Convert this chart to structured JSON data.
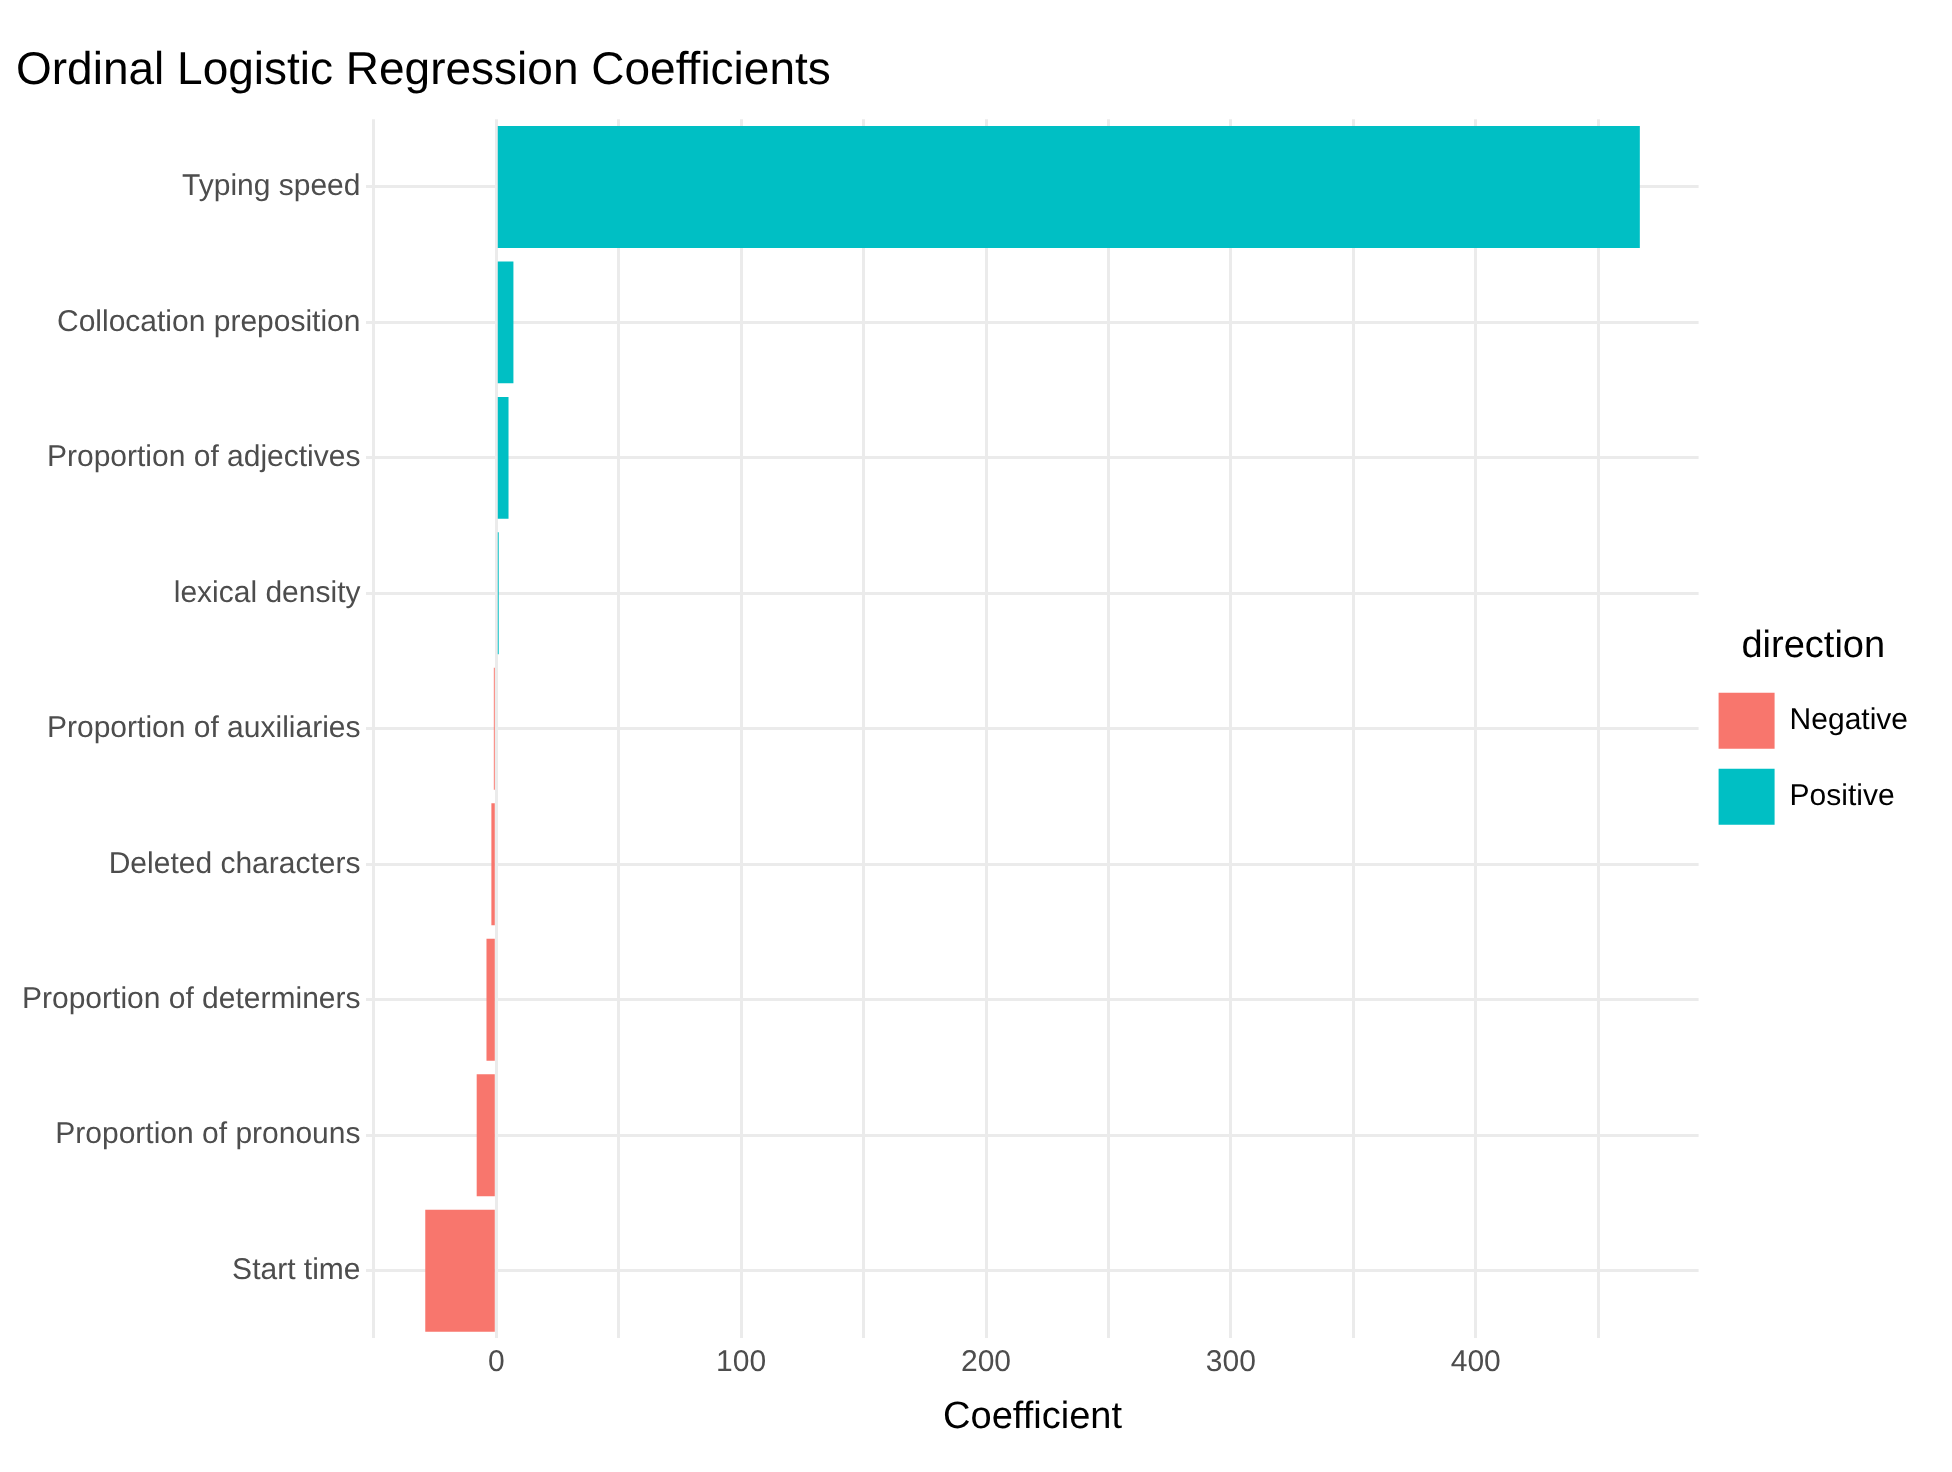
{
  "chart_data": {
    "type": "bar",
    "orientation": "horizontal",
    "stacked": true,
    "title": "Ordinal Logistic Regression Coefficients",
    "xlabel": "Coefficient",
    "legend_title": "direction",
    "legend": "right",
    "grid": true,
    "categories": [
      "Typing speed",
      "Collocation preposition",
      "Proportion of adjectives",
      "lexical density",
      "Proportion of auxiliaries",
      "Deleted characters",
      "Proportion of determiners",
      "Proportion of pronouns",
      "Start time"
    ],
    "series": [
      {
        "name": "Negative",
        "color": "#f8766d",
        "values": [
          null,
          null,
          null,
          null,
          -1,
          -2,
          -4,
          -8,
          -29
        ]
      },
      {
        "name": "Positive",
        "color": "#00bfc4",
        "values": [
          467,
          7,
          5,
          1,
          null,
          null,
          null,
          null,
          null
        ]
      }
    ],
    "xlim": [
      -53,
      491
    ],
    "xticks": [
      {
        "value": -50,
        "label": null
      },
      0,
      {
        "value": 50,
        "label": null
      },
      100,
      {
        "value": 150,
        "label": null
      },
      200,
      {
        "value": 250,
        "label": null
      },
      300,
      {
        "value": 350,
        "label": null
      },
      400,
      {
        "value": 450,
        "label": null
      }
    ]
  }
}
